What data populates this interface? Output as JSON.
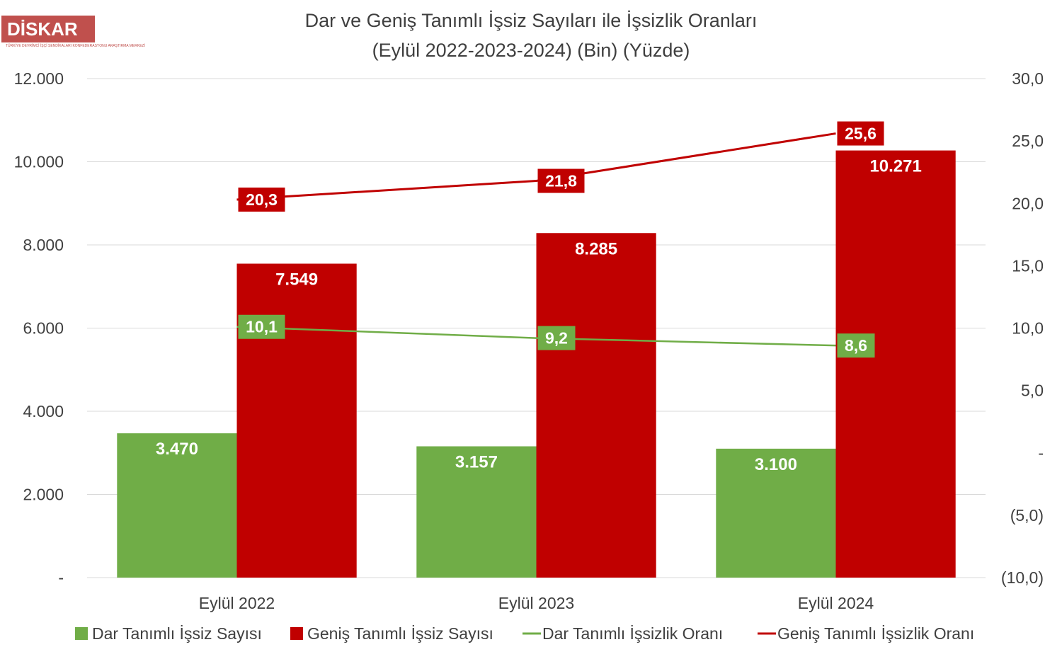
{
  "logo": {
    "text": "DİSKAR",
    "subtitle": "TÜRKİYE DEVRİMCİ İŞÇİ SENDİKALARI KONFEDERASYONU ARAŞTIRMA MERKEZİ"
  },
  "colors": {
    "green": "#70ad47",
    "red": "#c00000",
    "grid": "#d9d9d9",
    "text": "#404040",
    "logo_bg": "#c0504d"
  },
  "chart_data": {
    "type": "bar",
    "title": "Dar ve Geniş Tanımlı İşsiz Sayıları ile İşsizlik Oranları",
    "subtitle": "(Eylül 2022-2023-2024) (Bin) (Yüzde)",
    "categories": [
      "Eylül 2022",
      "Eylül 2023",
      "Eylül  2024"
    ],
    "series": [
      {
        "name": "Dar Tanımlı İşsiz Sayısı",
        "type": "bar",
        "axis": "left",
        "color": "#70ad47",
        "values": [
          3470,
          3157,
          3100
        ],
        "labels": [
          "3.470",
          "3.157",
          "3.100"
        ]
      },
      {
        "name": "Geniş Tanımlı İşsiz Sayısı",
        "type": "bar",
        "axis": "left",
        "color": "#c00000",
        "values": [
          7549,
          8285,
          10271
        ],
        "labels": [
          "7.549",
          "8.285",
          "10.271"
        ]
      },
      {
        "name": "Dar Tanımlı İşsizlik Oranı",
        "type": "line",
        "axis": "right",
        "color": "#70ad47",
        "values": [
          10.1,
          9.2,
          8.6
        ],
        "labels": [
          "10,1",
          "9,2",
          "8,6"
        ]
      },
      {
        "name": "Geniş Tanımlı İşsizlik Oranı",
        "type": "line",
        "axis": "right",
        "color": "#c00000",
        "values": [
          20.3,
          21.8,
          25.6
        ],
        "labels": [
          "20,3",
          "21,8",
          "25,6"
        ]
      }
    ],
    "y_left": {
      "range": [
        0,
        12000
      ],
      "ticks": [
        0,
        2000,
        4000,
        6000,
        8000,
        10000,
        12000
      ],
      "tick_labels": [
        "-",
        "2.000",
        "4.000",
        "6.000",
        "8.000",
        "10.000",
        "12.000"
      ]
    },
    "y_right": {
      "range": [
        -10,
        30
      ],
      "ticks": [
        -10,
        -5,
        0,
        5,
        10,
        15,
        20,
        25,
        30
      ],
      "tick_labels": [
        "(10,0)",
        "(5,0)",
        "-",
        "5,0",
        "10,0",
        "15,0",
        "20,0",
        "25,0",
        "30,0"
      ]
    },
    "grid": true,
    "legend_position": "bottom"
  }
}
